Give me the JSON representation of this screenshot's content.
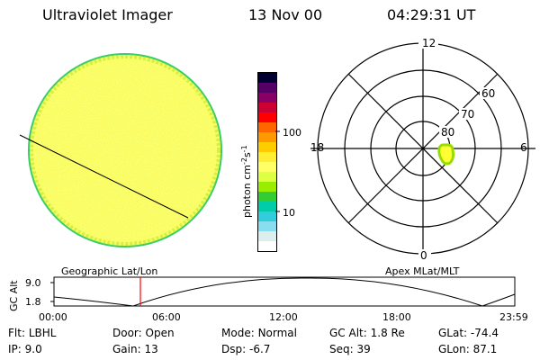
{
  "header": {
    "instrument": "Ultraviolet Imager",
    "date": "13 Nov 00",
    "time": "04:29:31 UT"
  },
  "colorbar": {
    "unit_label": "photon cm",
    "unit_exp1": "-2",
    "unit_mid": "s",
    "unit_exp2": "-1",
    "tick_100": "100",
    "tick_10": "10",
    "colors": [
      "#000033",
      "#550066",
      "#880066",
      "#cc0033",
      "#ff0000",
      "#ff6600",
      "#ff9900",
      "#ffcc00",
      "#ffee33",
      "#ffff66",
      "#ddff44",
      "#99ee00",
      "#33cc33",
      "#00ccaa",
      "#33ccdd",
      "#88ddee",
      "#ddeeee",
      "#ffffff"
    ]
  },
  "polar_plot": {
    "labels": {
      "top": "12",
      "bottom": "0",
      "left": "18",
      "right": "6"
    },
    "rings": [
      "60",
      "70",
      "80"
    ]
  },
  "orbit_panel": {
    "left_title": "Geographic Lat/Lon",
    "right_title": "Apex MLat/MLT",
    "ylabel": "GC Alt",
    "y_top": "9.0",
    "y_bottom": "1.8",
    "x_ticks": [
      "00:00",
      "06:00",
      "12:00",
      "18:00",
      "23:59"
    ],
    "marker_color": "#ff0000"
  },
  "params": {
    "row1": [
      {
        "label": "Flt:",
        "value": "LBHL"
      },
      {
        "label": "Door:",
        "value": "Open"
      },
      {
        "label": "Mode:",
        "value": "Normal"
      },
      {
        "label": "GC Alt:",
        "value": "1.8 Re"
      },
      {
        "label": "GLat:",
        "value": "-74.4"
      }
    ],
    "row2": [
      {
        "label": "IP:",
        "value": "9.0"
      },
      {
        "label": "Gain:",
        "value": "13"
      },
      {
        "label": "Dsp:",
        "value": "-6.7"
      },
      {
        "label": "Seq:",
        "value": "39"
      },
      {
        "label": "GLon:",
        "value": "87.1"
      }
    ]
  }
}
